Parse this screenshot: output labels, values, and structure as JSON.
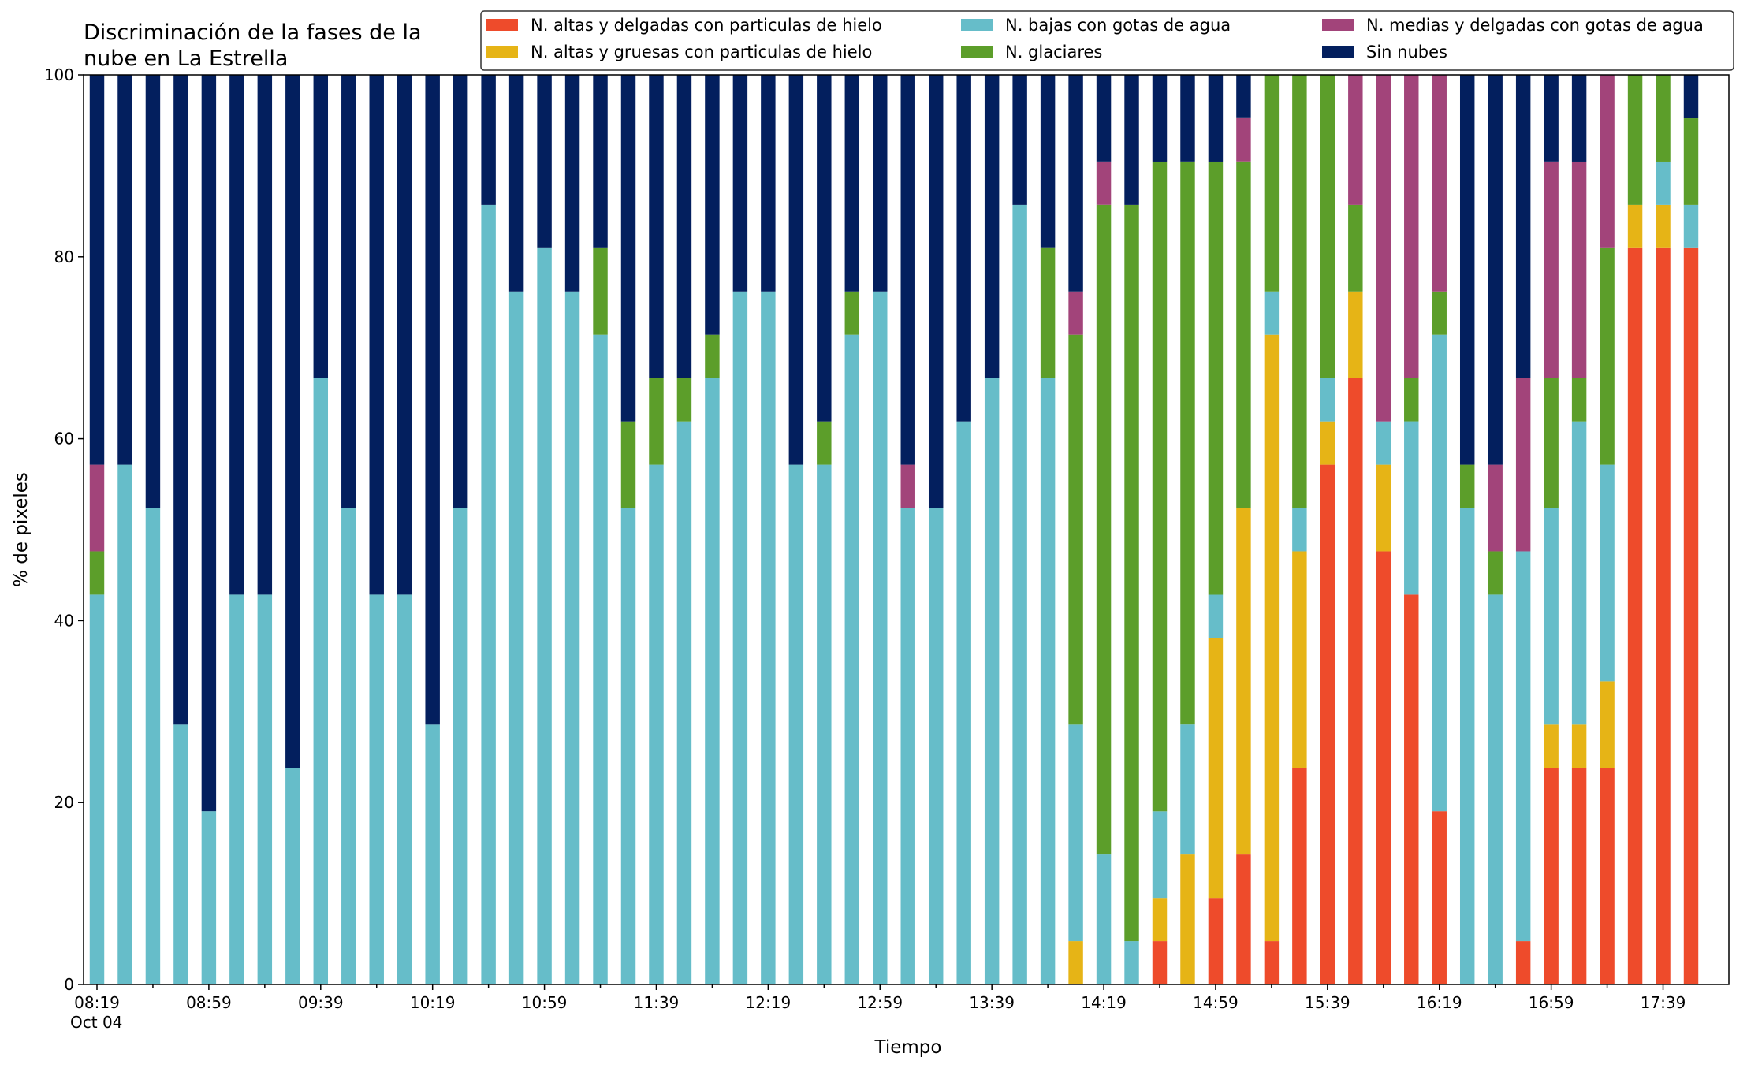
{
  "chart_data": {
    "type": "stacked_bar",
    "title": [
      "Discriminación de la fases de la",
      "nube en La Estrella"
    ],
    "xlabel": "Tiempo",
    "ylabel": "% de pixeles",
    "x_date_label": "Oct 04",
    "categories": [
      "08:19",
      null,
      null,
      null,
      "08:59",
      null,
      null,
      null,
      "09:39",
      null,
      null,
      null,
      "10:19",
      null,
      null,
      null,
      "10:59",
      null,
      null,
      null,
      "11:39",
      null,
      null,
      null,
      "12:19",
      null,
      null,
      null,
      "12:59",
      null,
      null,
      null,
      "13:39",
      null,
      null,
      null,
      "14:19",
      null,
      null,
      null,
      "14:59",
      null,
      null,
      null,
      "15:39",
      null,
      null,
      null,
      "16:19",
      null,
      null,
      null,
      "16:59",
      null,
      null,
      null,
      "17:39",
      null
    ],
    "ylim": [
      0,
      100
    ],
    "yticks": [
      0,
      20,
      40,
      60,
      80,
      100
    ],
    "series": [
      {
        "name": "N. altas y delgadas con particulas de hielo",
        "color": "#ee4b2b",
        "values": [
          0,
          0,
          0,
          0,
          0,
          0,
          0,
          0,
          0,
          0,
          0,
          0,
          0,
          0,
          0,
          0,
          0,
          0,
          0,
          0,
          0,
          0,
          0,
          0,
          0,
          0,
          0,
          0,
          0,
          0,
          0,
          0,
          0,
          0,
          0,
          0,
          0,
          0,
          4.76,
          0,
          9.52,
          14.29,
          4.76,
          23.81,
          57.14,
          66.67,
          47.62,
          42.86,
          19.05,
          0,
          0,
          4.76,
          23.81,
          23.81,
          23.81,
          80.95,
          80.95,
          80.95
        ]
      },
      {
        "name": "N. altas y gruesas con particulas de hielo",
        "color": "#e6b416",
        "values": [
          0,
          0,
          0,
          0,
          0,
          0,
          0,
          0,
          0,
          0,
          0,
          0,
          0,
          0,
          0,
          0,
          0,
          0,
          0,
          0,
          0,
          0,
          0,
          0,
          0,
          0,
          0,
          0,
          0,
          0,
          0,
          0,
          0,
          0,
          0,
          4.76,
          0,
          0,
          4.76,
          14.29,
          28.57,
          38.1,
          66.67,
          23.81,
          4.76,
          9.52,
          9.52,
          0,
          0,
          0,
          0,
          0,
          4.76,
          4.76,
          9.52,
          4.76,
          4.76,
          0
        ]
      },
      {
        "name": "N. bajas con gotas de agua",
        "color": "#66bdc9",
        "values": [
          42.86,
          57.14,
          52.38,
          28.57,
          19.05,
          42.86,
          42.86,
          23.81,
          66.67,
          52.38,
          42.86,
          42.86,
          28.57,
          52.38,
          85.71,
          76.19,
          80.95,
          76.19,
          71.43,
          52.38,
          57.14,
          61.9,
          66.67,
          76.19,
          76.19,
          57.14,
          57.14,
          71.43,
          76.19,
          52.38,
          52.38,
          61.9,
          66.67,
          85.71,
          66.67,
          23.81,
          14.29,
          4.76,
          9.52,
          14.29,
          4.76,
          0,
          4.76,
          4.76,
          4.76,
          0,
          4.76,
          19.05,
          52.38,
          52.38,
          42.86,
          42.86,
          23.81,
          33.33,
          23.81,
          0,
          4.76,
          4.76
        ]
      },
      {
        "name": "N. glaciares",
        "color": "#5c9e2a",
        "values": [
          4.76,
          0,
          0,
          0,
          0,
          0,
          0,
          0,
          0,
          0,
          0,
          0,
          0,
          0,
          0,
          0,
          0,
          0,
          9.52,
          9.52,
          9.52,
          4.76,
          4.76,
          0,
          0,
          0,
          4.76,
          4.76,
          0,
          0,
          0,
          0,
          0,
          0,
          14.29,
          42.86,
          71.43,
          80.95,
          71.43,
          61.9,
          47.62,
          38.1,
          23.81,
          47.62,
          33.33,
          9.52,
          0,
          4.76,
          4.76,
          4.76,
          4.76,
          0,
          14.29,
          4.76,
          23.81,
          14.29,
          9.52,
          9.52
        ]
      },
      {
        "name": "N. medias y delgadas con gotas de agua",
        "color": "#a2447a",
        "values": [
          9.52,
          0,
          0,
          0,
          0,
          0,
          0,
          0,
          0,
          0,
          0,
          0,
          0,
          0,
          0,
          0,
          0,
          0,
          0,
          0,
          0,
          0,
          0,
          0,
          0,
          0,
          0,
          0,
          0,
          4.76,
          0,
          0,
          0,
          0,
          0,
          4.76,
          4.76,
          0,
          0,
          0,
          0,
          4.76,
          0,
          0,
          0,
          14.29,
          38.1,
          33.33,
          23.81,
          0,
          9.52,
          19.05,
          23.81,
          23.81,
          19.05,
          0,
          0,
          0
        ]
      },
      {
        "name": "Sin nubes",
        "color": "#031f5e",
        "values": [
          42.86,
          42.86,
          47.62,
          71.43,
          80.95,
          57.14,
          57.14,
          76.19,
          33.33,
          47.62,
          57.14,
          57.14,
          71.43,
          47.62,
          14.29,
          23.81,
          19.05,
          23.81,
          19.05,
          38.1,
          33.33,
          33.33,
          28.57,
          23.81,
          23.81,
          42.86,
          38.1,
          23.81,
          23.81,
          42.86,
          47.62,
          38.1,
          33.33,
          14.29,
          19.05,
          23.81,
          9.52,
          14.29,
          9.52,
          9.52,
          9.52,
          4.76,
          0,
          0,
          0,
          0,
          0,
          0,
          0,
          42.86,
          42.86,
          33.33,
          9.52,
          9.52,
          0,
          0,
          0,
          4.76
        ]
      }
    ]
  }
}
